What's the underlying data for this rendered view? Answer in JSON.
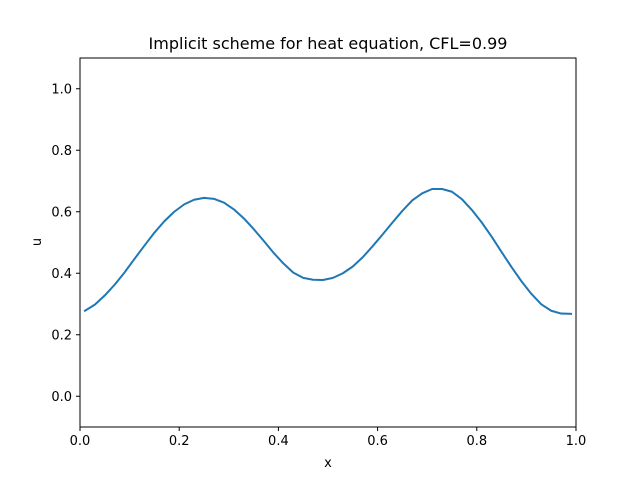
{
  "chart_data": {
    "type": "line",
    "title": "Implicit scheme for heat equation, CFL=0.99",
    "xlabel": "x",
    "ylabel": "u",
    "xlim": [
      0.0,
      1.0
    ],
    "ylim": [
      -0.1,
      1.1
    ],
    "xticks": [
      "0.0",
      "0.2",
      "0.4",
      "0.6",
      "0.8",
      "1.0"
    ],
    "yticks": [
      "0.0",
      "0.2",
      "0.4",
      "0.6",
      "0.8",
      "1.0"
    ],
    "grid": false,
    "series": [
      {
        "color": "#1f77b4",
        "x": [
          0.01,
          0.03,
          0.05,
          0.07,
          0.09,
          0.11,
          0.13,
          0.15,
          0.17,
          0.19,
          0.21,
          0.23,
          0.25,
          0.27,
          0.29,
          0.31,
          0.33,
          0.35,
          0.37,
          0.39,
          0.41,
          0.43,
          0.45,
          0.47,
          0.49,
          0.51,
          0.53,
          0.55,
          0.57,
          0.59,
          0.61,
          0.63,
          0.65,
          0.67,
          0.69,
          0.71,
          0.73,
          0.75,
          0.77,
          0.79,
          0.81,
          0.83,
          0.85,
          0.87,
          0.89,
          0.91,
          0.93,
          0.95,
          0.97,
          0.99
        ],
        "y": [
          0.278,
          0.298,
          0.328,
          0.363,
          0.403,
          0.447,
          0.49,
          0.532,
          0.569,
          0.6,
          0.624,
          0.639,
          0.645,
          0.642,
          0.63,
          0.608,
          0.579,
          0.544,
          0.506,
          0.467,
          0.432,
          0.402,
          0.385,
          0.379,
          0.378,
          0.385,
          0.4,
          0.422,
          0.452,
          0.488,
          0.526,
          0.565,
          0.603,
          0.637,
          0.66,
          0.674,
          0.674,
          0.665,
          0.641,
          0.606,
          0.565,
          0.519,
          0.469,
          0.42,
          0.374,
          0.333,
          0.299,
          0.278,
          0.269,
          0.268
        ]
      }
    ]
  }
}
